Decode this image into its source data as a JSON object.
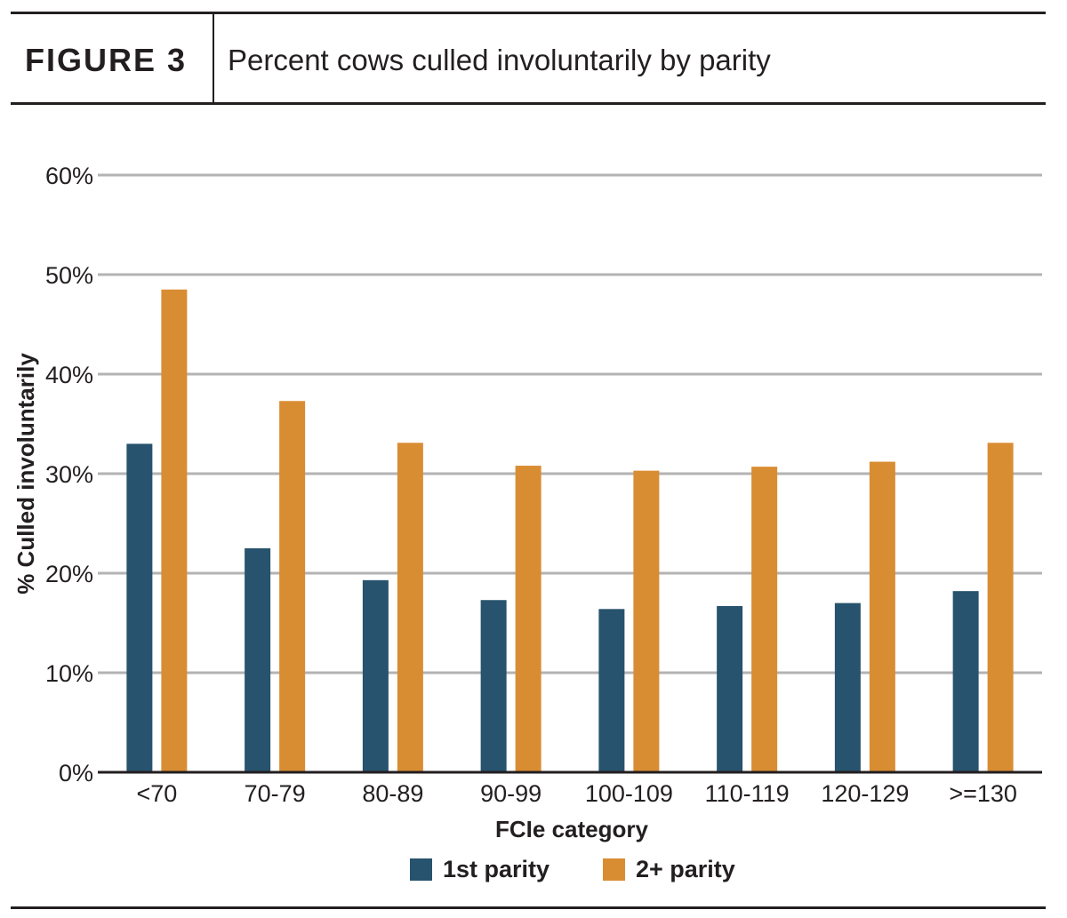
{
  "figure": {
    "label": "FIGURE 3",
    "title": "Percent cows culled involuntarily by parity"
  },
  "colors": {
    "series_1": "#27536e",
    "series_2": "#d98d33",
    "grid": "#b3b3b3",
    "axis": "#231f20"
  },
  "chart_data": {
    "type": "bar",
    "title": "Percent cows culled involuntarily by parity",
    "xlabel": "FCIe category",
    "ylabel": "% Culled involuntarily",
    "categories": [
      "<70",
      "70-79",
      "80-89",
      "90-99",
      "100-109",
      "110-119",
      "120-129",
      ">=130"
    ],
    "series": [
      {
        "name": "1st parity",
        "values": [
          33,
          22.5,
          19.3,
          17.3,
          16.4,
          16.7,
          17,
          18.2
        ]
      },
      {
        "name": "2+ parity",
        "values": [
          48.5,
          37.3,
          33.1,
          30.8,
          30.3,
          30.7,
          31.2,
          33.1
        ]
      }
    ],
    "ylim": [
      0,
      60
    ],
    "yticks": [
      "0%",
      "10%",
      "20%",
      "30%",
      "40%",
      "50%",
      "60%"
    ],
    "grid": true,
    "legend_position": "bottom"
  }
}
